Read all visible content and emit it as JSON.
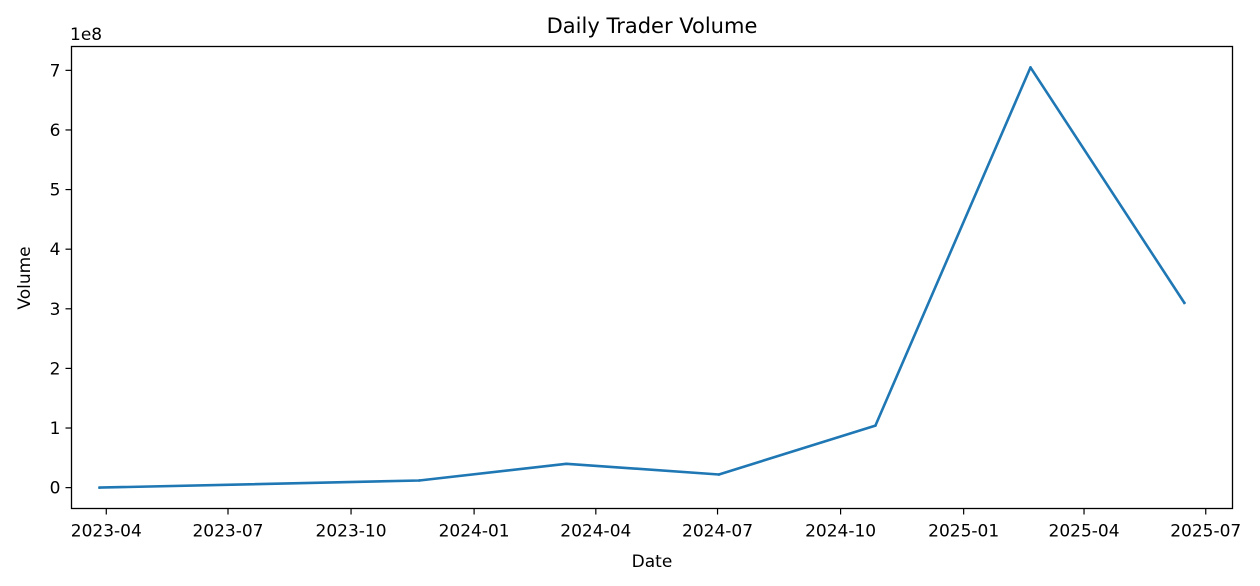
{
  "chart_data": {
    "type": "line",
    "title": "Daily Trader Volume",
    "xlabel": "Date",
    "ylabel": "Volume",
    "y_offset_label": "1e8",
    "x_axis_type": "date",
    "xlim": [
      "2023-03-06",
      "2025-07-21"
    ],
    "ylim": [
      -0.35,
      7.4
    ],
    "y_scale_factor": 100000000,
    "x_ticks": [
      "2023-04",
      "2023-07",
      "2023-10",
      "2024-01",
      "2024-04",
      "2024-07",
      "2024-10",
      "2025-01",
      "2025-04",
      "2025-07"
    ],
    "y_ticks": [
      0,
      1,
      2,
      3,
      4,
      5,
      6,
      7
    ],
    "grid": false,
    "series": [
      {
        "color": "#1f77b4",
        "x": [
          "2023-03-27",
          "2023-11-21",
          "2024-03-10",
          "2024-07-02",
          "2024-10-27",
          "2025-02-20",
          "2025-06-15"
        ],
        "values": [
          0.0,
          0.12,
          0.4,
          0.22,
          1.04,
          7.05,
          3.1
        ]
      }
    ]
  }
}
